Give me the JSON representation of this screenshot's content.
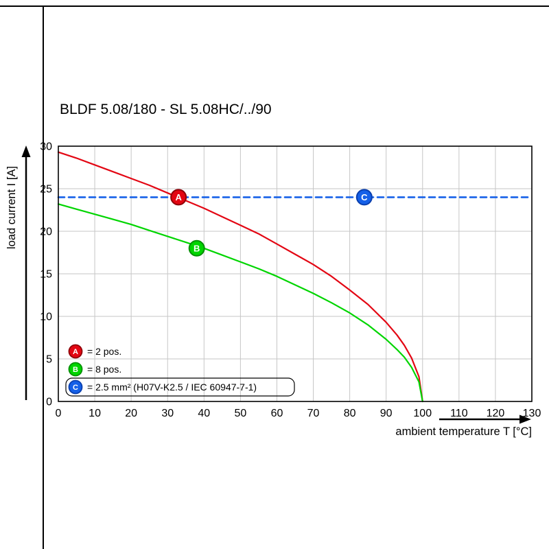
{
  "title": "BLDF 5.08/180 - SL 5.08HC/../90",
  "chart_data": {
    "type": "line",
    "title": "BLDF 5.08/180 - SL 5.08HC/../90",
    "xlabel": "ambient temperature T [°C]",
    "ylabel": "load current I [A]",
    "xlim": [
      0,
      130
    ],
    "ylim": [
      0,
      30
    ],
    "x_ticks": [
      0,
      10,
      20,
      30,
      40,
      50,
      60,
      70,
      80,
      90,
      100,
      110,
      120,
      130
    ],
    "y_ticks": [
      0,
      5,
      10,
      15,
      20,
      25,
      30
    ],
    "grid": true,
    "legend_position": "lower-left-inside",
    "colors": {
      "grid": "#c6c6c6",
      "axis": "#000000"
    },
    "series": [
      {
        "name": "A",
        "label": "= 2 pos.",
        "color": "#e30613",
        "dark": "#8f0008",
        "dashed": false,
        "marker": {
          "x": 33,
          "y": 24
        },
        "points": [
          [
            0,
            29.3
          ],
          [
            5,
            28.6
          ],
          [
            10,
            27.8
          ],
          [
            15,
            27.0
          ],
          [
            20,
            26.2
          ],
          [
            25,
            25.4
          ],
          [
            30,
            24.5
          ],
          [
            35,
            23.6
          ],
          [
            40,
            22.7
          ],
          [
            45,
            21.7
          ],
          [
            50,
            20.7
          ],
          [
            55,
            19.7
          ],
          [
            60,
            18.5
          ],
          [
            65,
            17.3
          ],
          [
            70,
            16.1
          ],
          [
            75,
            14.7
          ],
          [
            80,
            13.1
          ],
          [
            85,
            11.4
          ],
          [
            90,
            9.3
          ],
          [
            93,
            7.8
          ],
          [
            95,
            6.6
          ],
          [
            97,
            5.1
          ],
          [
            99,
            2.9
          ],
          [
            100,
            0
          ]
        ]
      },
      {
        "name": "B",
        "label": "= 8 pos.",
        "color": "#00d500",
        "dark": "#008f00",
        "dashed": false,
        "marker": {
          "x": 38,
          "y": 18
        },
        "points": [
          [
            0,
            23.2
          ],
          [
            5,
            22.6
          ],
          [
            10,
            22.0
          ],
          [
            15,
            21.4
          ],
          [
            20,
            20.8
          ],
          [
            25,
            20.1
          ],
          [
            30,
            19.4
          ],
          [
            35,
            18.7
          ],
          [
            40,
            18.0
          ],
          [
            45,
            17.2
          ],
          [
            50,
            16.4
          ],
          [
            55,
            15.6
          ],
          [
            60,
            14.7
          ],
          [
            65,
            13.7
          ],
          [
            70,
            12.7
          ],
          [
            75,
            11.6
          ],
          [
            80,
            10.4
          ],
          [
            85,
            9.0
          ],
          [
            90,
            7.3
          ],
          [
            93,
            6.1
          ],
          [
            95,
            5.2
          ],
          [
            97,
            4.0
          ],
          [
            99,
            2.3
          ],
          [
            100,
            0
          ]
        ]
      },
      {
        "name": "C",
        "label": "= 2.5 mm² (H07V-K2.5 / IEC 60947-7-1)",
        "color": "#1560e8",
        "dark": "#0a3fae",
        "dashed": true,
        "boxed_legend": true,
        "marker": {
          "x": 84,
          "y": 24
        },
        "points": [
          [
            0,
            24
          ],
          [
            130,
            24
          ]
        ]
      }
    ]
  }
}
